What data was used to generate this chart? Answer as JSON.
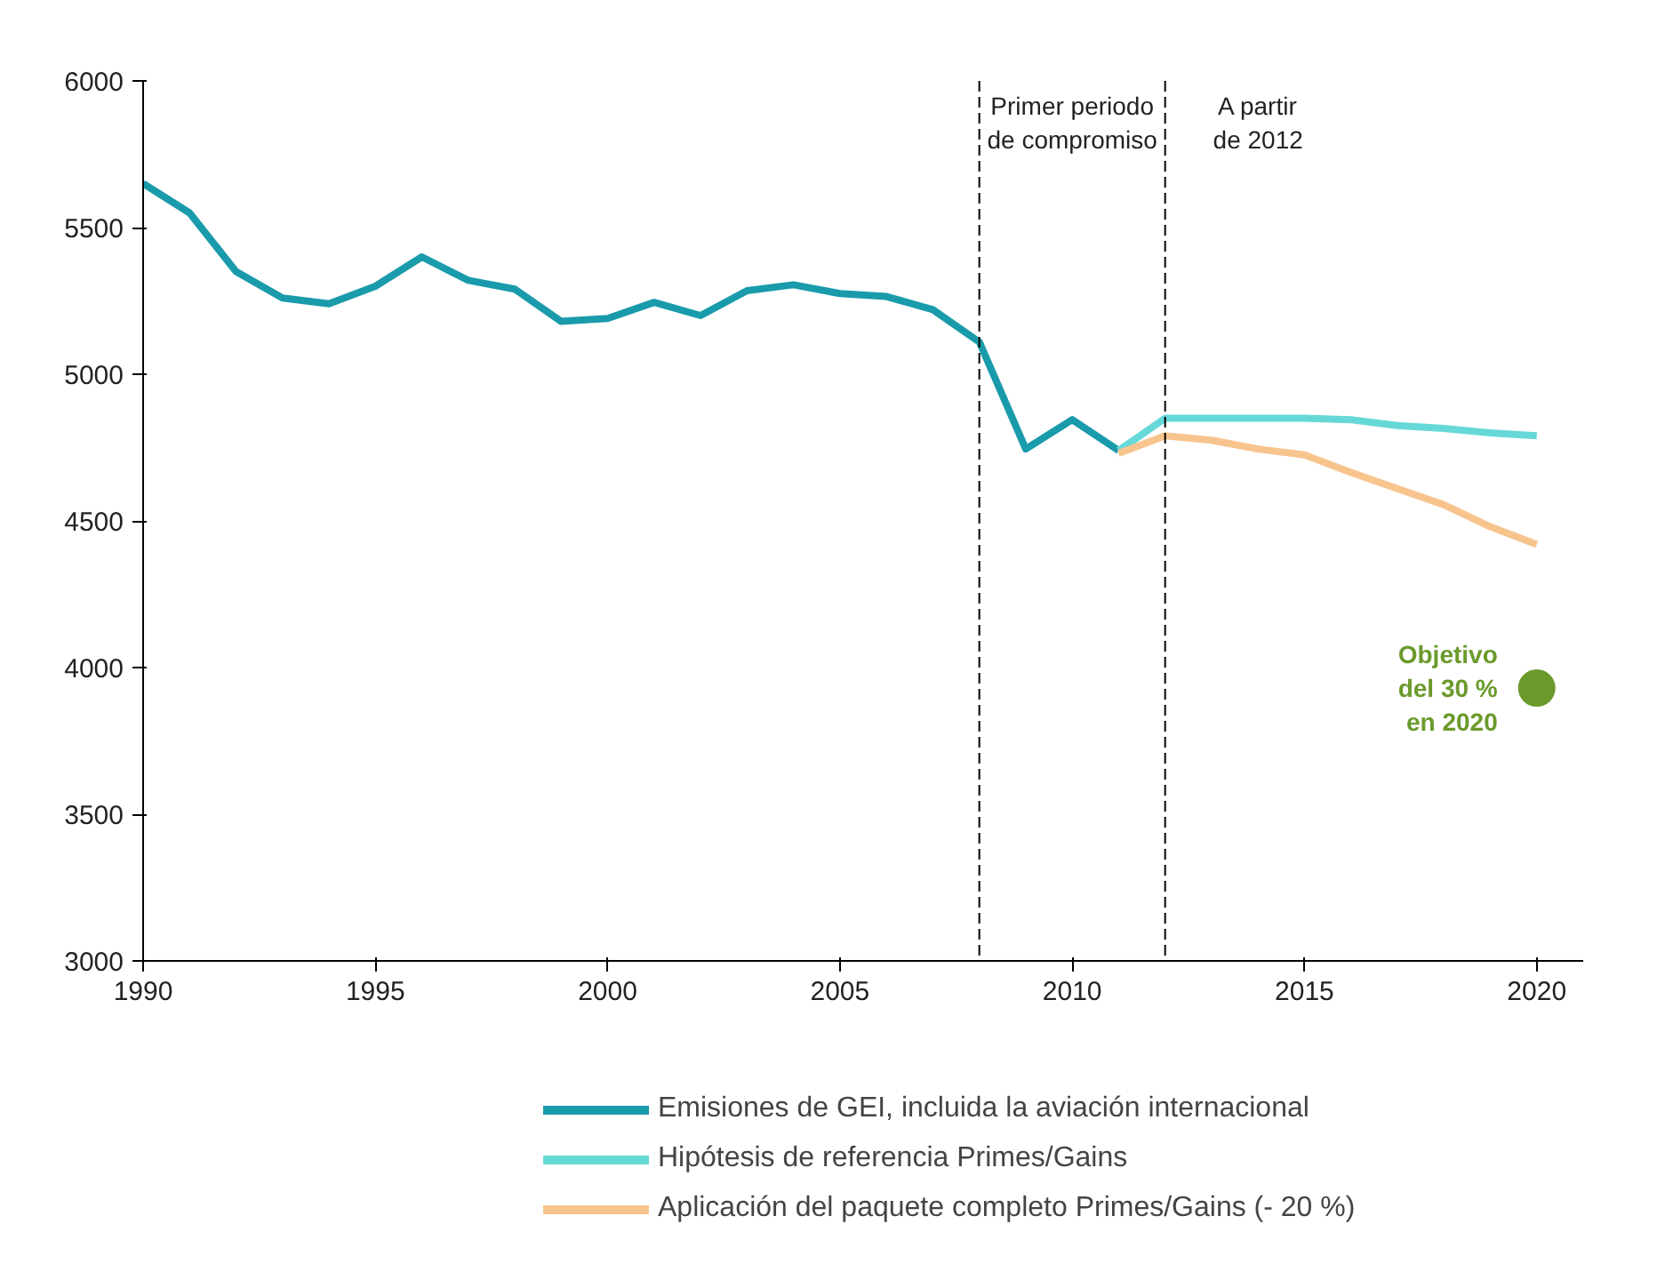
{
  "chart_data": {
    "type": "line",
    "xlim": [
      1990,
      2021
    ],
    "ylim": [
      3000,
      6000
    ],
    "xticks": [
      1990,
      1995,
      2000,
      2005,
      2010,
      2015,
      2020
    ],
    "yticks": [
      3000,
      3500,
      4000,
      4500,
      5000,
      5500,
      6000
    ],
    "grid": false,
    "legend": "bottom",
    "marker": "none",
    "line_style": "solid",
    "series": [
      {
        "name": "Emisiones de GEI, incluida la aviación internacional",
        "color": "#1a9bab",
        "x": [
          1990,
          1991,
          1992,
          1993,
          1994,
          1995,
          1996,
          1997,
          1998,
          1999,
          2000,
          2001,
          2002,
          2003,
          2004,
          2005,
          2006,
          2007,
          2008,
          2009,
          2010,
          2011
        ],
        "values": [
          5650,
          5550,
          5350,
          5260,
          5240,
          5300,
          5400,
          5320,
          5290,
          5180,
          5190,
          5245,
          5200,
          5285,
          5305,
          5275,
          5265,
          5220,
          5110,
          4745,
          4845,
          4740
        ]
      },
      {
        "name": "Hipótesis de referencia Primes/Gains",
        "color": "#66d8d8",
        "x": [
          2011,
          2012,
          2013,
          2014,
          2015,
          2016,
          2017,
          2018,
          2019,
          2020
        ],
        "values": [
          4740,
          4850,
          4850,
          4850,
          4850,
          4845,
          4825,
          4815,
          4800,
          4790
        ]
      },
      {
        "name": "Aplicación del paquete completo Primes/Gains (- 20 %)",
        "color": "#f8c48e",
        "x": [
          2011,
          2012,
          2013,
          2014,
          2015,
          2016,
          2017,
          2018,
          2019,
          2020
        ],
        "values": [
          4730,
          4790,
          4775,
          4745,
          4725,
          4665,
          4610,
          4555,
          4480,
          4420
        ]
      },
      {
        "type": "scatter",
        "marker": "circle",
        "color": "#6b9a2c",
        "x": [
          2020
        ],
        "values": [
          3930
        ]
      }
    ],
    "ref_lines": [
      {
        "axis": "x",
        "value": 2008,
        "label": "Primer periodo de compromiso",
        "color": "#000000",
        "line_style": "dashed"
      },
      {
        "axis": "x",
        "value": 2012,
        "label": "A partir de 2012",
        "color": "#000000",
        "line_style": "dashed"
      }
    ],
    "annotations": [
      {
        "text": "Objetivo del 30 % en 2020",
        "x": 2020,
        "y": 3930
      }
    ]
  }
}
